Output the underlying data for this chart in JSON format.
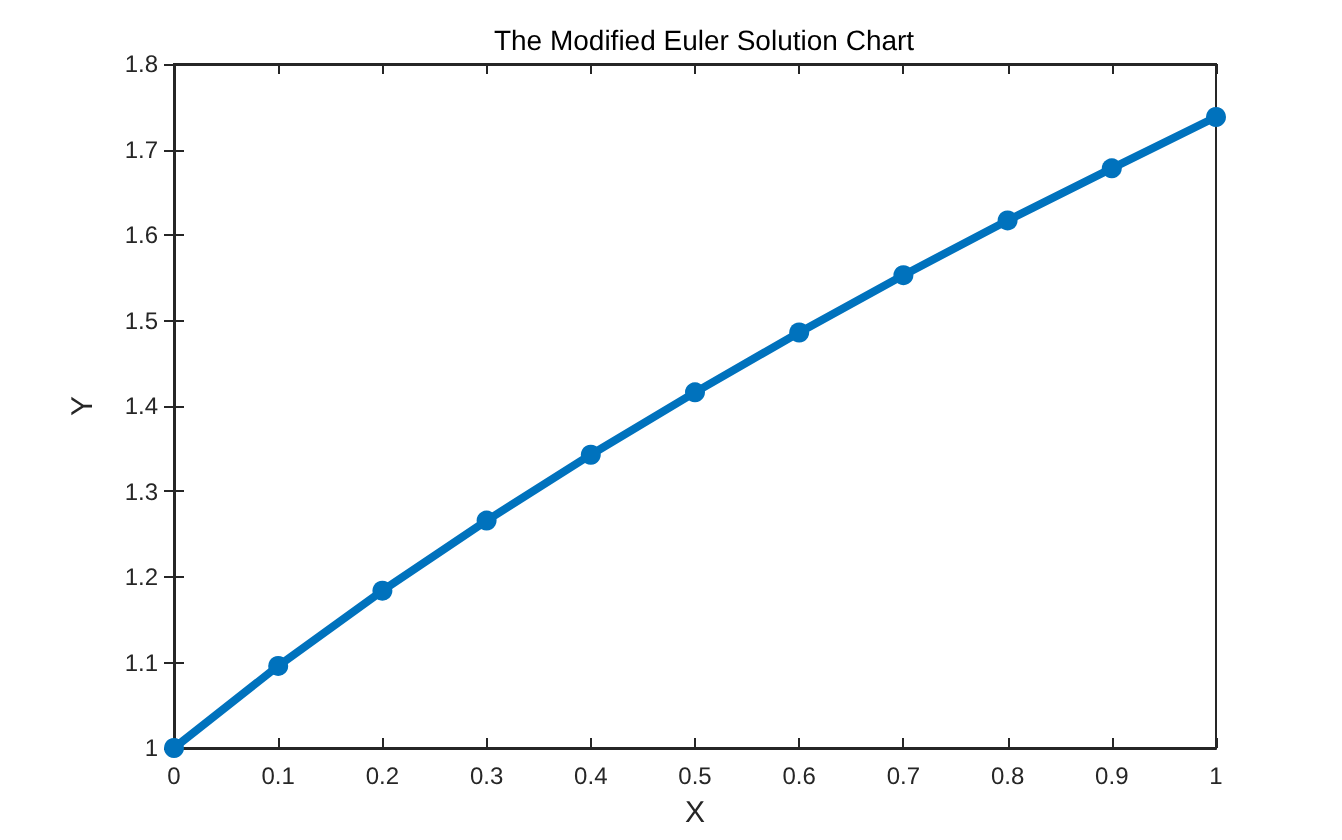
{
  "chart_data": {
    "type": "line",
    "title": "The Modified Euler Solution Chart",
    "xlabel": "X",
    "ylabel": "Y",
    "x": [
      0,
      0.1,
      0.2,
      0.3,
      0.4,
      0.5,
      0.6,
      0.7,
      0.8,
      0.9,
      1
    ],
    "series": [
      {
        "color": "#0072bd",
        "values": [
          1,
          1.096,
          1.184,
          1.266,
          1.343,
          1.416,
          1.486,
          1.553,
          1.617,
          1.678,
          1.738
        ]
      }
    ],
    "xlim": [
      0,
      1
    ],
    "xticks": [
      0,
      0.1,
      0.2,
      0.3,
      0.4,
      0.5,
      0.6,
      0.7,
      0.8,
      0.9,
      1
    ],
    "ylim": [
      1,
      1.8
    ],
    "yticks": [
      1,
      1.1,
      1.2,
      1.3,
      1.4,
      1.5,
      1.6,
      1.7,
      1.8
    ],
    "marker": "circle",
    "line_style": "solid"
  }
}
